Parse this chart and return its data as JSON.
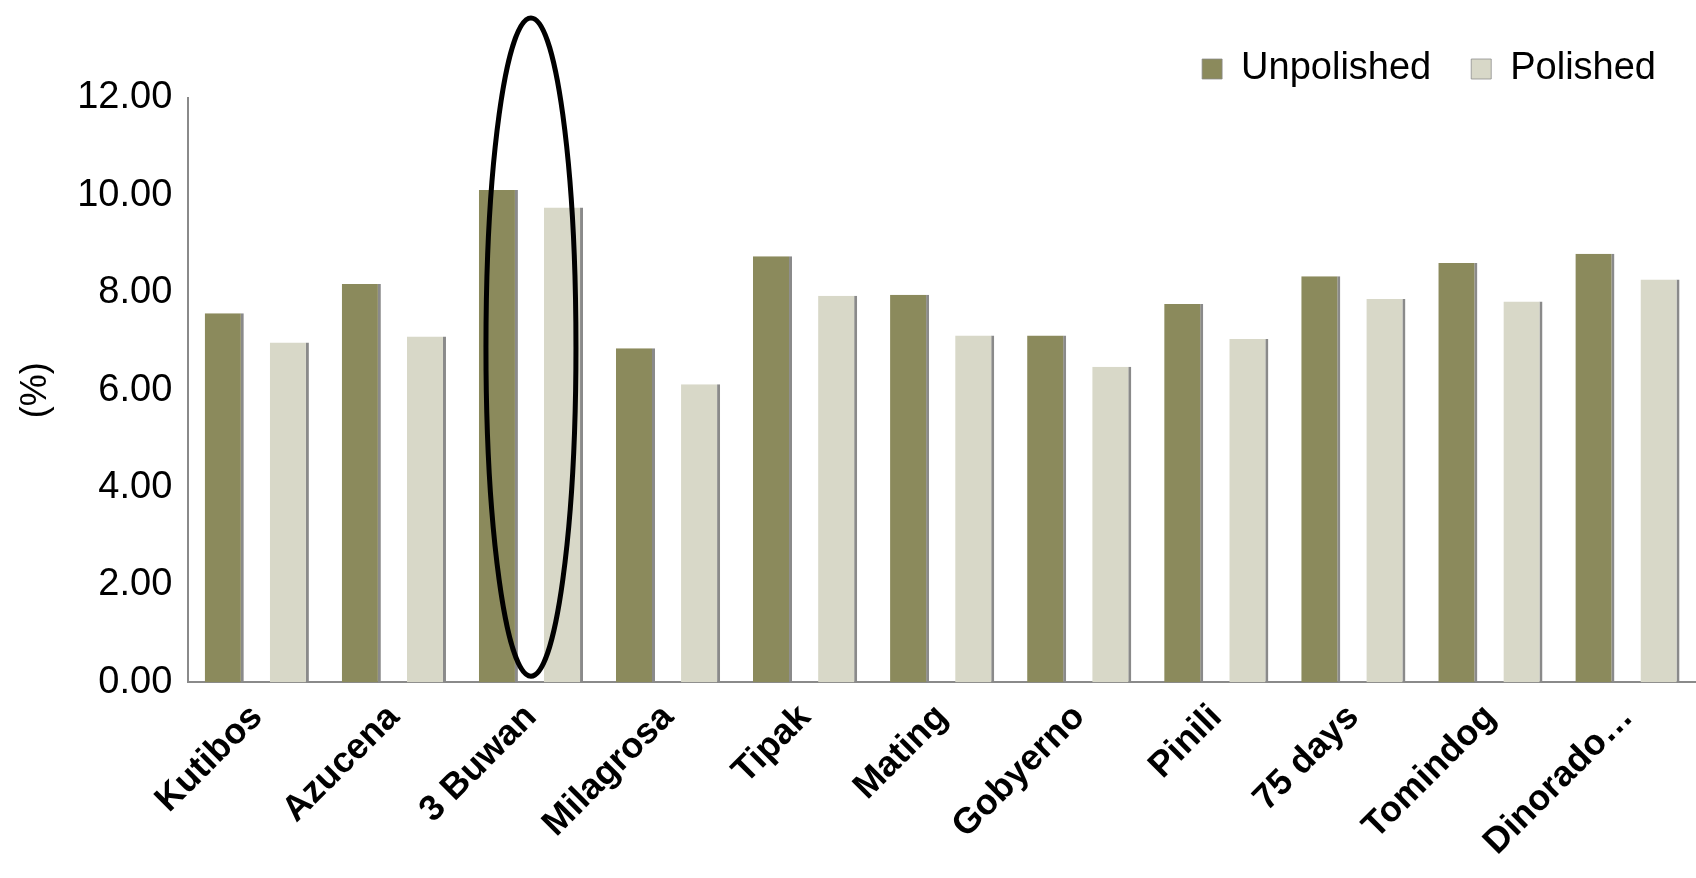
{
  "chart_data": {
    "type": "bar",
    "ylabel": "(%)",
    "categories": [
      "Kutibos",
      "Azucena",
      "3 Buwan",
      "Milagrosa",
      "Tipak",
      "Mating",
      "Gobyerno",
      "Pinili",
      "75 days",
      "Tomindog",
      "Dinorado…"
    ],
    "series": [
      {
        "name": "Unpolished",
        "color": "#8b8a5c",
        "values": [
          7.58,
          8.18,
          10.11,
          6.86,
          8.75,
          7.96,
          7.12,
          7.77,
          8.34,
          8.61,
          8.8
        ]
      },
      {
        "name": "Polished",
        "color": "#d8d8c8",
        "values": [
          6.98,
          7.1,
          9.75,
          6.12,
          7.94,
          7.12,
          6.48,
          7.05,
          7.87,
          7.82,
          8.27
        ]
      }
    ],
    "ylim": [
      0,
      12
    ],
    "yticks": [
      {
        "value": 0,
        "label": "0.00"
      },
      {
        "value": 2,
        "label": "2.00"
      },
      {
        "value": 4,
        "label": "4.00"
      },
      {
        "value": 6,
        "label": "6.00"
      },
      {
        "value": 8,
        "label": "8.00"
      },
      {
        "value": 10,
        "label": "10.00"
      },
      {
        "value": 12,
        "label": "12.00"
      }
    ],
    "grid": false,
    "legend": "top right"
  }
}
